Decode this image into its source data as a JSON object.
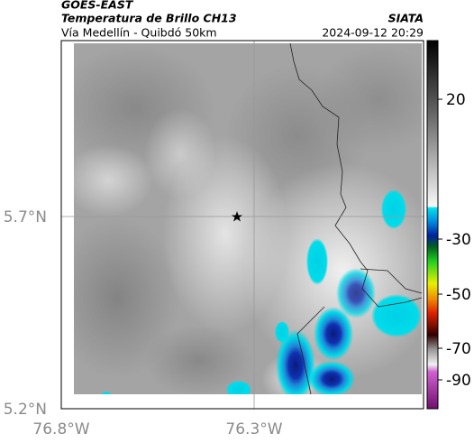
{
  "header": {
    "satellite": "GOES-EAST",
    "title": "Temperatura de Brillo CH13",
    "source": "SIATA",
    "subtitle": "Vía Medellín - Quibdó 50km",
    "timestamp": "2024-09-12 20:29"
  },
  "map": {
    "lat_labels": [
      "5.7°N",
      "5.2°N"
    ],
    "lon_labels": [
      "76.8°W",
      "76.3°W"
    ]
  },
  "colorbar": {
    "ticks": [
      20,
      -30,
      -50,
      -70,
      -90
    ]
  }
}
